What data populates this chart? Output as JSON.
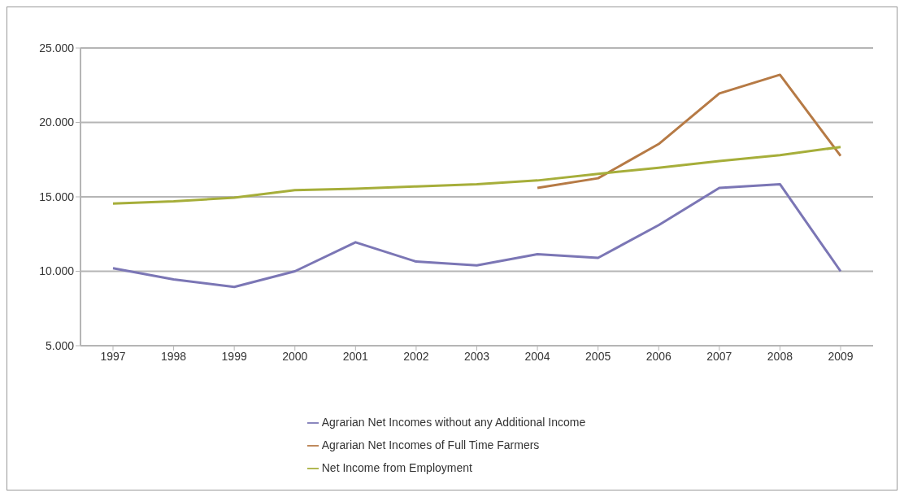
{
  "chart_data": {
    "type": "line",
    "categories": [
      "1997",
      "1998",
      "1999",
      "2000",
      "2001",
      "2002",
      "2003",
      "2004",
      "2005",
      "2006",
      "2007",
      "2008",
      "2009"
    ],
    "series": [
      {
        "name": "Agrarian Net Incomes without any Additional Income",
        "color": "#7b76b5",
        "values": [
          10200,
          9450,
          8950,
          10000,
          11950,
          10650,
          10400,
          11150,
          10900,
          13100,
          15600,
          15850,
          10000
        ]
      },
      {
        "name": "Agrarian Net Incomes of Full Time Farmers",
        "color": "#b67a45",
        "values": [
          null,
          null,
          null,
          null,
          null,
          null,
          null,
          15600,
          16250,
          18550,
          21950,
          23200,
          17750
        ]
      },
      {
        "name": "Net Income from Employment",
        "color": "#a6ae3a",
        "values": [
          14550,
          14700,
          14950,
          15450,
          15550,
          15700,
          15850,
          16100,
          16550,
          16950,
          17400,
          17800,
          18350
        ]
      }
    ],
    "ylim": [
      5000,
      25000
    ],
    "yticks": [
      {
        "value": 5000,
        "label": "5.000"
      },
      {
        "value": 10000,
        "label": "10.000"
      },
      {
        "value": 15000,
        "label": "15.000"
      },
      {
        "value": 20000,
        "label": "20.000"
      },
      {
        "value": 25000,
        "label": "25.000"
      }
    ],
    "grid": "y",
    "legend": "bottom",
    "marker": "none",
    "line_style": "solid"
  }
}
